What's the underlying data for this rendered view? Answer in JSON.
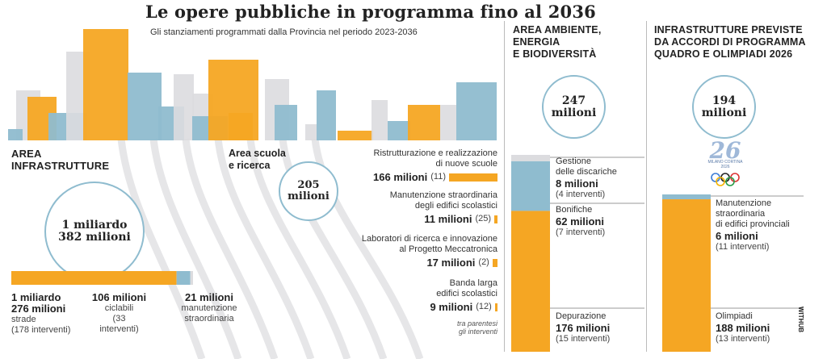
{
  "title": "Le opere pubbliche in programma fino al 2036",
  "subtitle": "Gli stanziamenti programmati dalla Provincia nel periodo 2023-2036",
  "colors": {
    "orange": "#f5a623",
    "blue": "#8fbccf",
    "grey": "#dcdcdf"
  },
  "infrastrutture": {
    "heading": "AREA\nINFRASTRUTTURE",
    "total": "1 miliardo\n382 milioni",
    "items": [
      {
        "amount": "1 miliardo\n276 milioni",
        "desc": "strade",
        "count": "(178 interventi)"
      },
      {
        "amount": "106 milioni",
        "desc": "ciclabili",
        "count": "(33\ninterventi)"
      },
      {
        "amount": "21 milioni",
        "desc": "manutenzione\nstraordinaria",
        "count": ""
      }
    ]
  },
  "scuola": {
    "heading": "Area scuola\ne ricerca",
    "total": "205\nmilioni",
    "items": [
      {
        "desc": "Ristrutturazione e realizzazione\ndi nuove scuole",
        "amount": "166 milioni",
        "count": "(11)"
      },
      {
        "desc": "Manutenzione straordinaria\ndegli edifici scolastici",
        "amount": "11 milioni",
        "count": "(25)"
      },
      {
        "desc": "Laboratori di ricerca e innovazione\nal Progetto Meccatronica",
        "amount": "17 milioni",
        "count": "(2)"
      },
      {
        "desc": "Banda larga\nedifici scolastici",
        "amount": "9 milioni",
        "count": "(12)"
      }
    ],
    "note": "tra parentesi\ngli interventi"
  },
  "ambiente": {
    "heading": "AREA AMBIENTE,\nENERGIA\nE BIODIVERSITÀ",
    "total": "247\nmilioni",
    "items": [
      {
        "desc": "Gestione\ndelle discariche",
        "amount": "8 milioni",
        "count": "(4 interventi)"
      },
      {
        "desc": "Bonifiche",
        "amount": "62 milioni",
        "count": "(7 interventi)"
      },
      {
        "desc": "Depurazione",
        "amount": "176 milioni",
        "count": "(15 interventi)"
      }
    ]
  },
  "olimpiadi": {
    "heading": "INFRASTRUTTURE PREVISTE\nDA ACCORDI DI PROGRAMMA\nQUADRO E OLIMPIADI 2026",
    "total": "194\nmilioni",
    "logo_text": "MILANO CORTINA\n2026",
    "items": [
      {
        "desc": "Manutenzione\nstraordinaria\ndi edifici provinciali",
        "amount": "6 milioni",
        "count": "(11 interventi)"
      },
      {
        "desc": "Olimpiadi",
        "amount": "188 milioni",
        "count": "(13 interventi)"
      }
    ]
  },
  "credit": "WITHUB",
  "chart_data": [
    {
      "type": "bar",
      "title": "AREA INFRASTRUTTURE",
      "stacked": true,
      "categories": [
        "strade",
        "ciclabili",
        "manutenzione straordinaria"
      ],
      "values": [
        1276,
        106,
        21
      ],
      "unit": "milioni"
    },
    {
      "type": "bar",
      "title": "Area scuola e ricerca",
      "categories": [
        "Ristrutturazione e realizzazione di nuove scuole",
        "Manutenzione straordinaria degli edifici scolastici",
        "Laboratori di ricerca e innovazione al Progetto Meccatronica",
        "Banda larga edifici scolastici"
      ],
      "values": [
        166,
        11,
        17,
        9
      ],
      "unit": "milioni"
    },
    {
      "type": "bar",
      "title": "AREA AMBIENTE, ENERGIA E BIODIVERSITÀ",
      "stacked": true,
      "categories": [
        "Gestione delle discariche",
        "Bonifiche",
        "Depurazione"
      ],
      "values": [
        8,
        62,
        176
      ],
      "unit": "milioni"
    },
    {
      "type": "bar",
      "title": "INFRASTRUTTURE PREVISTE DA ACCORDI DI PROGRAMMA QUADRO E OLIMPIADI 2026",
      "stacked": true,
      "categories": [
        "Manutenzione straordinaria di edifici provinciali",
        "Olimpiadi"
      ],
      "values": [
        6,
        188
      ],
      "unit": "milioni"
    }
  ]
}
